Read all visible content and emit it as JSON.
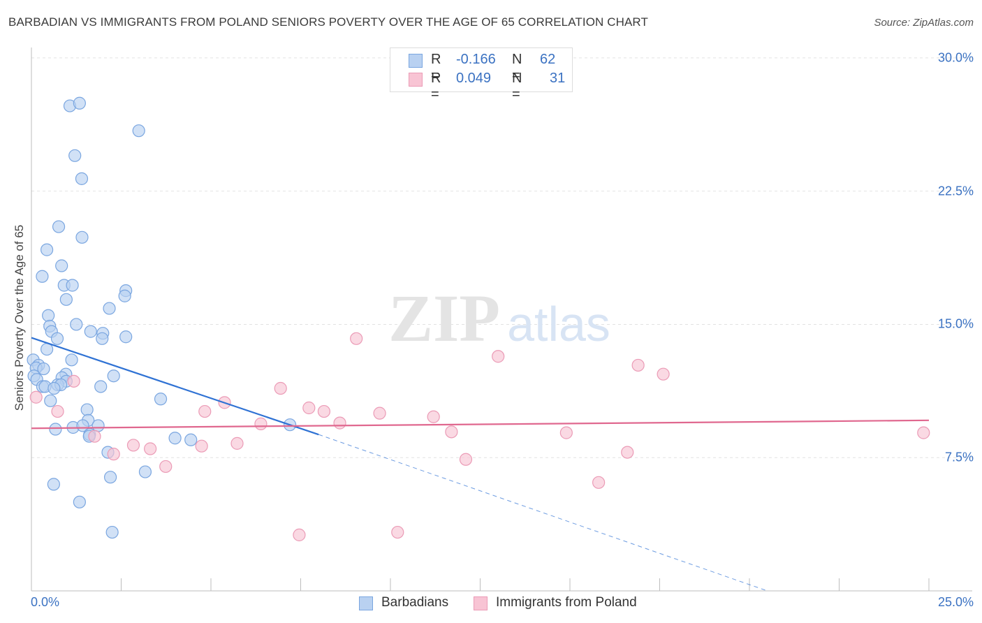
{
  "chart_data": {
    "type": "scatter",
    "title": "BARBADIAN VS IMMIGRANTS FROM POLAND SENIORS POVERTY OVER THE AGE OF 65 CORRELATION CHART",
    "source": "Source: ZipAtlas.com",
    "xlabel": "",
    "ylabel": "Seniors Poverty Over the Age of 65",
    "xlim": [
      0,
      25
    ],
    "ylim": [
      0,
      30.9
    ],
    "x_tick_labels": [
      "0.0%",
      "25.0%"
    ],
    "y_ticks": [
      7.5,
      15.0,
      22.5,
      30.0
    ],
    "y_tick_labels": [
      "7.5%",
      "15.0%",
      "22.5%",
      "30.0%"
    ],
    "grid": true,
    "watermark": "ZIPatlas",
    "series": [
      {
        "name": "Barbadians",
        "color": "#7aa6e0",
        "fill": "#b9d1f1",
        "line_color": "#2f72d4",
        "R": "-0.166",
        "N": "62",
        "trend": {
          "x0": 0.0,
          "y0": 14.25,
          "x1": 8.0,
          "y1": 8.8,
          "dash_x1": 20.5,
          "dash_y1": 0.0
        },
        "points": [
          [
            1.07,
            27.3
          ],
          [
            1.34,
            27.45
          ],
          [
            2.99,
            25.9
          ],
          [
            1.21,
            24.5
          ],
          [
            1.4,
            23.2
          ],
          [
            0.76,
            20.5
          ],
          [
            1.41,
            19.9
          ],
          [
            0.43,
            19.2
          ],
          [
            0.84,
            18.3
          ],
          [
            0.3,
            17.7
          ],
          [
            0.91,
            17.2
          ],
          [
            1.14,
            17.2
          ],
          [
            2.63,
            16.9
          ],
          [
            2.6,
            16.6
          ],
          [
            0.97,
            16.4
          ],
          [
            2.17,
            15.9
          ],
          [
            0.47,
            15.5
          ],
          [
            0.51,
            14.9
          ],
          [
            1.25,
            15.0
          ],
          [
            0.56,
            14.6
          ],
          [
            1.65,
            14.6
          ],
          [
            1.99,
            14.5
          ],
          [
            1.97,
            14.2
          ],
          [
            2.63,
            14.3
          ],
          [
            0.72,
            14.2
          ],
          [
            0.43,
            13.6
          ],
          [
            1.12,
            13.0
          ],
          [
            0.05,
            13.0
          ],
          [
            0.2,
            12.7
          ],
          [
            0.13,
            12.55
          ],
          [
            0.34,
            12.5
          ],
          [
            0.96,
            12.2
          ],
          [
            2.29,
            12.1
          ],
          [
            0.07,
            12.1
          ],
          [
            0.85,
            12.0
          ],
          [
            0.15,
            11.9
          ],
          [
            0.97,
            11.8
          ],
          [
            0.73,
            11.6
          ],
          [
            0.82,
            11.6
          ],
          [
            0.31,
            11.5
          ],
          [
            0.38,
            11.5
          ],
          [
            0.63,
            11.4
          ],
          [
            1.93,
            11.5
          ],
          [
            3.6,
            10.8
          ],
          [
            0.53,
            10.7
          ],
          [
            1.55,
            10.2
          ],
          [
            1.58,
            9.6
          ],
          [
            0.67,
            9.1
          ],
          [
            1.16,
            9.2
          ],
          [
            1.43,
            9.3
          ],
          [
            1.86,
            9.3
          ],
          [
            1.62,
            8.8
          ],
          [
            1.61,
            8.7
          ],
          [
            4.0,
            8.6
          ],
          [
            4.44,
            8.5
          ],
          [
            7.2,
            9.35
          ],
          [
            2.13,
            7.8
          ],
          [
            3.17,
            6.7
          ],
          [
            2.2,
            6.4
          ],
          [
            0.62,
            6.0
          ],
          [
            1.34,
            5.0
          ],
          [
            2.25,
            3.3
          ]
        ]
      },
      {
        "name": "Immigrants from Poland",
        "color": "#eb9bb6",
        "fill": "#f8c4d4",
        "line_color": "#e0688f",
        "R": "0.049",
        "N": "31",
        "trend": {
          "x0": 0.0,
          "y0": 9.15,
          "x1": 25.0,
          "y1": 9.6
        },
        "points": [
          [
            0.13,
            10.9
          ],
          [
            0.73,
            10.1
          ],
          [
            1.18,
            11.8
          ],
          [
            1.76,
            8.7
          ],
          [
            2.29,
            7.7
          ],
          [
            2.84,
            8.2
          ],
          [
            3.31,
            8.0
          ],
          [
            3.74,
            7.0
          ],
          [
            4.74,
            8.15
          ],
          [
            4.83,
            10.1
          ],
          [
            5.38,
            10.6
          ],
          [
            5.73,
            8.3
          ],
          [
            6.39,
            9.4
          ],
          [
            6.94,
            11.4
          ],
          [
            7.46,
            3.15
          ],
          [
            7.73,
            10.3
          ],
          [
            8.15,
            10.1
          ],
          [
            8.59,
            9.45
          ],
          [
            9.05,
            14.2
          ],
          [
            9.7,
            10.0
          ],
          [
            10.2,
            3.3
          ],
          [
            11.2,
            9.8
          ],
          [
            11.7,
            8.95
          ],
          [
            12.1,
            7.4
          ],
          [
            13.0,
            13.2
          ],
          [
            14.9,
            8.9
          ],
          [
            15.8,
            6.1
          ],
          [
            16.6,
            7.8
          ],
          [
            16.9,
            12.7
          ],
          [
            17.6,
            12.2
          ],
          [
            24.85,
            8.9
          ]
        ]
      }
    ]
  }
}
